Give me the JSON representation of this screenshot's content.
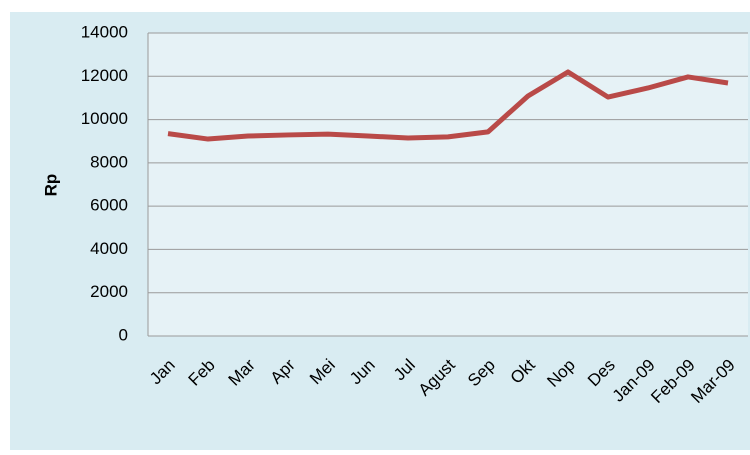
{
  "chart_data": {
    "type": "line",
    "y_label": "Rp",
    "categories": [
      "Jan",
      "Feb",
      "Mar",
      "Apr",
      "Mei",
      "Jun",
      "Jul",
      "Agust",
      "Sep",
      "Okt",
      "Nop",
      "Des",
      "Jan-09",
      "Feb-09",
      "Mar-09"
    ],
    "series": [
      {
        "color": "#b94a48",
        "values": [
          9350,
          9100,
          9240,
          9290,
          9330,
          9240,
          9150,
          9200,
          9430,
          11090,
          12200,
          11040,
          11460,
          11970,
          11690
        ]
      }
    ],
    "ylim": [
      0,
      14000
    ],
    "yticks": [
      0,
      2000,
      4000,
      6000,
      8000,
      10000,
      12000,
      14000
    ],
    "grid": true
  }
}
